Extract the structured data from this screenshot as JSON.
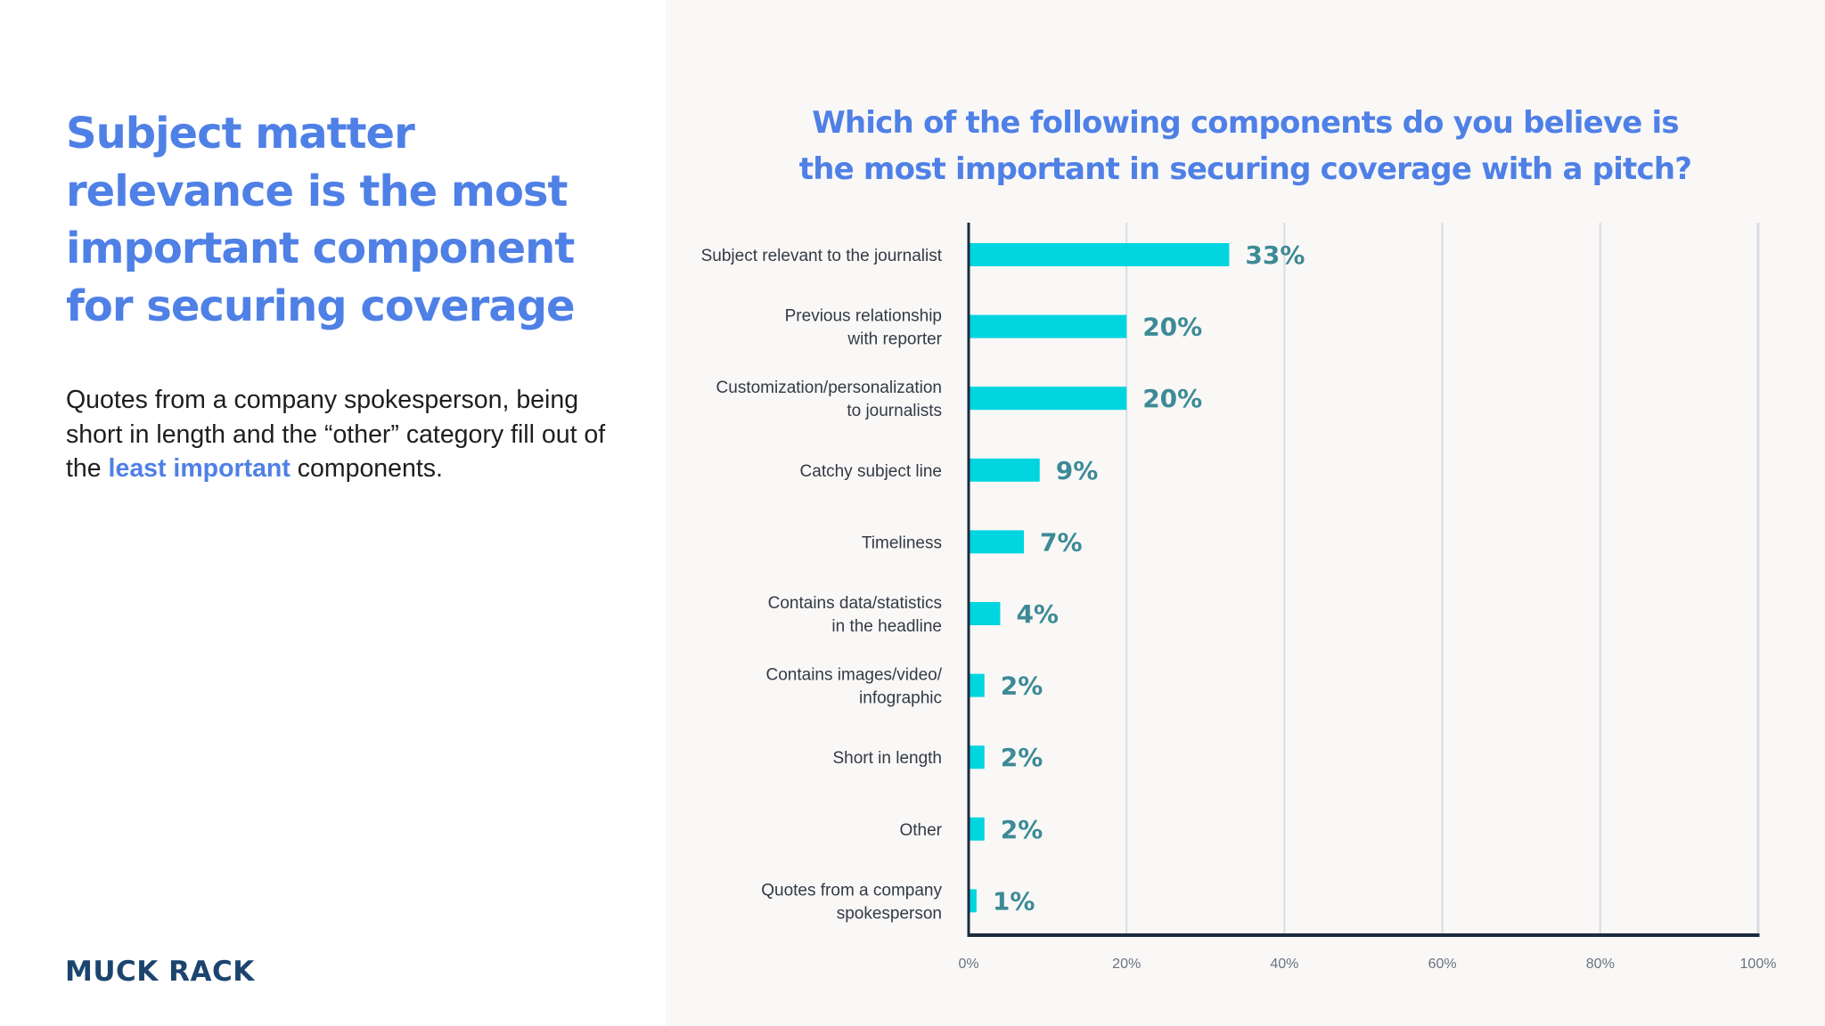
{
  "left": {
    "headline": "Subject matter relevance is the most important component for securing coverage",
    "body_pre": "Quotes from a company spokesperson, being short in length and the “other” category fill out of the ",
    "body_highlight": "least important",
    "body_post": " components.",
    "logo": "MUCK RACK"
  },
  "colors": {
    "accent_blue": "#4f80e6",
    "bar": "#00d5e0",
    "value_text": "#3d8a96",
    "axis": "#1c2b3f",
    "grid": "#d9dce3",
    "logo": "#1b446f"
  },
  "chart_data": {
    "type": "bar",
    "orientation": "horizontal",
    "title": "Which of the following components do you believe is the most important in securing coverage with a pitch?",
    "title_lines": [
      "Which of the following components do you believe is",
      "the most important in securing coverage with a pitch?"
    ],
    "categories": [
      [
        "Subject relevant to the journalist"
      ],
      [
        "Previous relationship",
        "with reporter"
      ],
      [
        "Customization/personalization",
        "to journalists"
      ],
      [
        "Catchy subject line"
      ],
      [
        "Timeliness"
      ],
      [
        "Contains data/statistics",
        "in the headline"
      ],
      [
        "Contains images/video/",
        "infographic"
      ],
      [
        "Short in length"
      ],
      [
        "Other"
      ],
      [
        "Quotes from a company",
        "spokesperson"
      ]
    ],
    "values": [
      33,
      20,
      20,
      9,
      7,
      4,
      2,
      2,
      2,
      1
    ],
    "value_labels": [
      "33%",
      "20%",
      "20%",
      "9%",
      "7%",
      "4%",
      "2%",
      "2%",
      "2%",
      "1%"
    ],
    "xlim": [
      0,
      100
    ],
    "xticks": [
      0,
      20,
      40,
      60,
      80,
      100
    ],
    "xtick_labels": [
      "0%",
      "20%",
      "40%",
      "60%",
      "80%",
      "100%"
    ],
    "xlabel": "",
    "ylabel": "",
    "grid": true,
    "legend": "none"
  }
}
